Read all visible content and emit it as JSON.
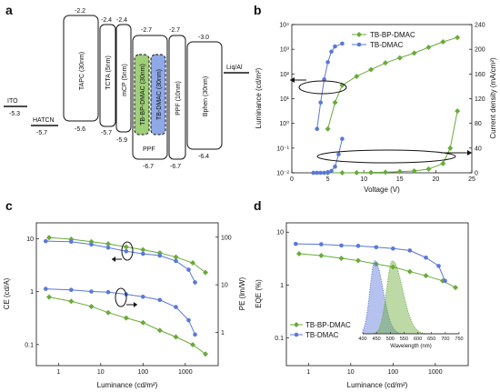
{
  "panels": {
    "a": "a",
    "b": "b",
    "c": "c",
    "d": "d"
  },
  "energy": {
    "layers": [
      {
        "id": "ito",
        "name": "ITO",
        "bottom": "-5.3",
        "kind": "line"
      },
      {
        "id": "hatcn",
        "name": "HATCN",
        "bottom": "-5.7",
        "kind": "line"
      },
      {
        "id": "tapc",
        "name": "TAPC (30nm)",
        "top": "-2.2",
        "bottom": "-5.6",
        "kind": "box"
      },
      {
        "id": "tcta",
        "name": "TCTA (5nm)",
        "top": "-2.4",
        "bottom": "-5.7",
        "kind": "box"
      },
      {
        "id": "mcp",
        "name": "mCP (5nm)",
        "top": "-2.4",
        "bottom": "-5.9",
        "kind": "box"
      },
      {
        "id": "tbbp",
        "name": "TB-BP-DMAC (30nm)",
        "kind": "emitter-green"
      },
      {
        "id": "tbd",
        "name": "TB-DMAC (30nm)",
        "kind": "emitter-blue"
      },
      {
        "id": "ppf-host",
        "name": "PPF",
        "top": "-2.7",
        "bottom": "-6.7",
        "kind": "host"
      },
      {
        "id": "ppf",
        "name": "PPF (10nm)",
        "top": "-2.7",
        "bottom": "-6.7",
        "kind": "box"
      },
      {
        "id": "bphen",
        "name": "Bphen (30nm)",
        "top": "-3.0",
        "bottom": "-6.4",
        "kind": "box"
      },
      {
        "id": "liqal",
        "name": "Liq/Al",
        "kind": "line"
      }
    ]
  },
  "chart_data": [
    {
      "panel": "b",
      "type": "line",
      "xlabel": "Voltage (V)",
      "ylabel": "Luminance (cd/m²)",
      "y2label": "Current density (mA/cm²)",
      "xlim": [
        0,
        25
      ],
      "ylim_log": [
        0.01,
        10000
      ],
      "y2lim": [
        0,
        240
      ],
      "xticks": [
        "0",
        "5",
        "10",
        "15",
        "20",
        "25"
      ],
      "yticks": [
        "10⁻²",
        "10⁻¹",
        "10⁰",
        "10¹",
        "10²",
        "10³",
        "10⁴"
      ],
      "y2ticks": [
        "0",
        "40",
        "80",
        "120",
        "160",
        "200",
        "240"
      ],
      "legend": "top-center",
      "series": [
        {
          "name": "TB-BP-DMAC",
          "color": "#6aaa3a",
          "marker": "diamond",
          "axis": "left",
          "x": [
            5,
            6,
            7,
            9,
            11,
            13,
            15,
            17,
            19,
            21,
            23
          ],
          "y": [
            0.6,
            7,
            35,
            80,
            150,
            280,
            450,
            700,
            1200,
            2000,
            3000
          ]
        },
        {
          "name": "TB-BP-DMAC",
          "color": "#6aaa3a",
          "marker": "diamond",
          "axis": "right",
          "legend": false,
          "x": [
            5,
            7,
            9,
            11,
            13,
            15,
            17,
            19,
            21,
            22,
            23
          ],
          "y": [
            0,
            0,
            0.2,
            0.5,
            1,
            2,
            3,
            6,
            15,
            40,
            100
          ]
        },
        {
          "name": "TB-DMAC",
          "color": "#5a78d8",
          "marker": "circle",
          "axis": "left",
          "x": [
            3.5,
            4,
            4.5,
            5,
            5.5,
            6,
            7
          ],
          "y": [
            0.6,
            7,
            60,
            300,
            800,
            1300,
            1700
          ]
        },
        {
          "name": "TB-DMAC",
          "color": "#5a78d8",
          "marker": "circle",
          "axis": "right",
          "legend": false,
          "x": [
            3,
            3.5,
            4,
            4.5,
            5,
            5.5,
            6,
            6.5,
            7
          ],
          "y": [
            0,
            0,
            0,
            0,
            1,
            3,
            10,
            30,
            55
          ]
        }
      ]
    },
    {
      "panel": "c",
      "type": "line",
      "xlabel": "Luminance (cd/m²)",
      "ylabel": "CE (cd/A)",
      "y2label": "PE (lm/W)",
      "xlim_log": [
        0.3,
        6000
      ],
      "ylim_log": [
        0.04,
        20
      ],
      "y2lim_log": [
        0.2,
        200
      ],
      "xticks": [
        "1",
        "10",
        "100",
        "1000"
      ],
      "yticks": [
        "0.1",
        "1",
        "10"
      ],
      "y2ticks": [
        "1",
        "10",
        "100"
      ],
      "series": [
        {
          "name": "TB-BP-DMAC CE",
          "color": "#6aaa3a",
          "marker": "diamond",
          "axis": "left",
          "x": [
            0.6,
            2,
            6,
            15,
            40,
            100,
            250,
            600,
            1500,
            3000
          ],
          "y": [
            10.5,
            9.8,
            8.8,
            8,
            7,
            6.2,
            5.4,
            4.5,
            3.5,
            2.3
          ]
        },
        {
          "name": "TB-DMAC CE",
          "color": "#5a78d8",
          "marker": "circle",
          "axis": "left",
          "x": [
            0.5,
            2,
            6,
            15,
            40,
            100,
            250,
            600,
            1200,
            1700
          ],
          "y": [
            9,
            8.8,
            7.8,
            6.8,
            5.8,
            5.2,
            4.8,
            3.8,
            2.6,
            1.5
          ]
        },
        {
          "name": "TB-BP-DMAC PE",
          "color": "#6aaa3a",
          "marker": "diamond",
          "axis": "right",
          "x": [
            0.6,
            2,
            6,
            15,
            40,
            100,
            250,
            600,
            1500,
            3000
          ],
          "y": [
            5.5,
            4.5,
            3.5,
            2.6,
            2,
            1.6,
            1.1,
            0.8,
            0.55,
            0.35
          ]
        },
        {
          "name": "TB-DMAC PE",
          "color": "#5a78d8",
          "marker": "circle",
          "axis": "right",
          "x": [
            0.5,
            2,
            6,
            15,
            40,
            100,
            250,
            600,
            1200,
            1700
          ],
          "y": [
            8.2,
            7.8,
            7.2,
            7,
            6.3,
            5.6,
            4.8,
            3.4,
            1.8,
            0.9
          ]
        }
      ]
    },
    {
      "panel": "d",
      "type": "line",
      "xlabel": "Luminance (cd/m²)",
      "ylabel": "EQE (%)",
      "xlim_log": [
        0.3,
        6000
      ],
      "ylim_log": [
        0.03,
        15
      ],
      "xticks": [
        "1",
        "10",
        "100",
        "1000"
      ],
      "yticks": [
        "0.1",
        "1",
        "10"
      ],
      "legend": "bottom-left",
      "series": [
        {
          "name": "TB-BP-DMAC",
          "color": "#6aaa3a",
          "marker": "diamond",
          "axis": "left",
          "x": [
            0.6,
            2,
            6,
            15,
            40,
            100,
            250,
            600,
            1500,
            3000
          ],
          "y": [
            3.9,
            3.6,
            3.2,
            2.9,
            2.5,
            2.2,
            1.8,
            1.5,
            1.2,
            0.9
          ]
        },
        {
          "name": "TB-DMAC",
          "color": "#5a78d8",
          "marker": "circle",
          "axis": "left",
          "x": [
            0.5,
            2,
            6,
            15,
            40,
            100,
            250,
            600,
            1200,
            1700
          ],
          "y": [
            6,
            5.9,
            5.6,
            5.5,
            5.2,
            4.9,
            4.5,
            3.3,
            2.3,
            1.2
          ]
        }
      ],
      "inset": {
        "type": "area",
        "xlabel": "Wavelength (nm)",
        "xlim": [
          400,
          750
        ],
        "xticks": [
          "400",
          "450",
          "500",
          "550",
          "600",
          "650",
          "700",
          "750"
        ],
        "series": [
          {
            "name": "TB-DMAC",
            "color": "#5a78d8",
            "peak": 444,
            "width_left": 25,
            "width_right": 42
          },
          {
            "name": "TB-BP-DMAC",
            "color": "#6aaa3a",
            "peak": 508,
            "width_left": 30,
            "width_right": 52
          }
        ]
      }
    }
  ]
}
